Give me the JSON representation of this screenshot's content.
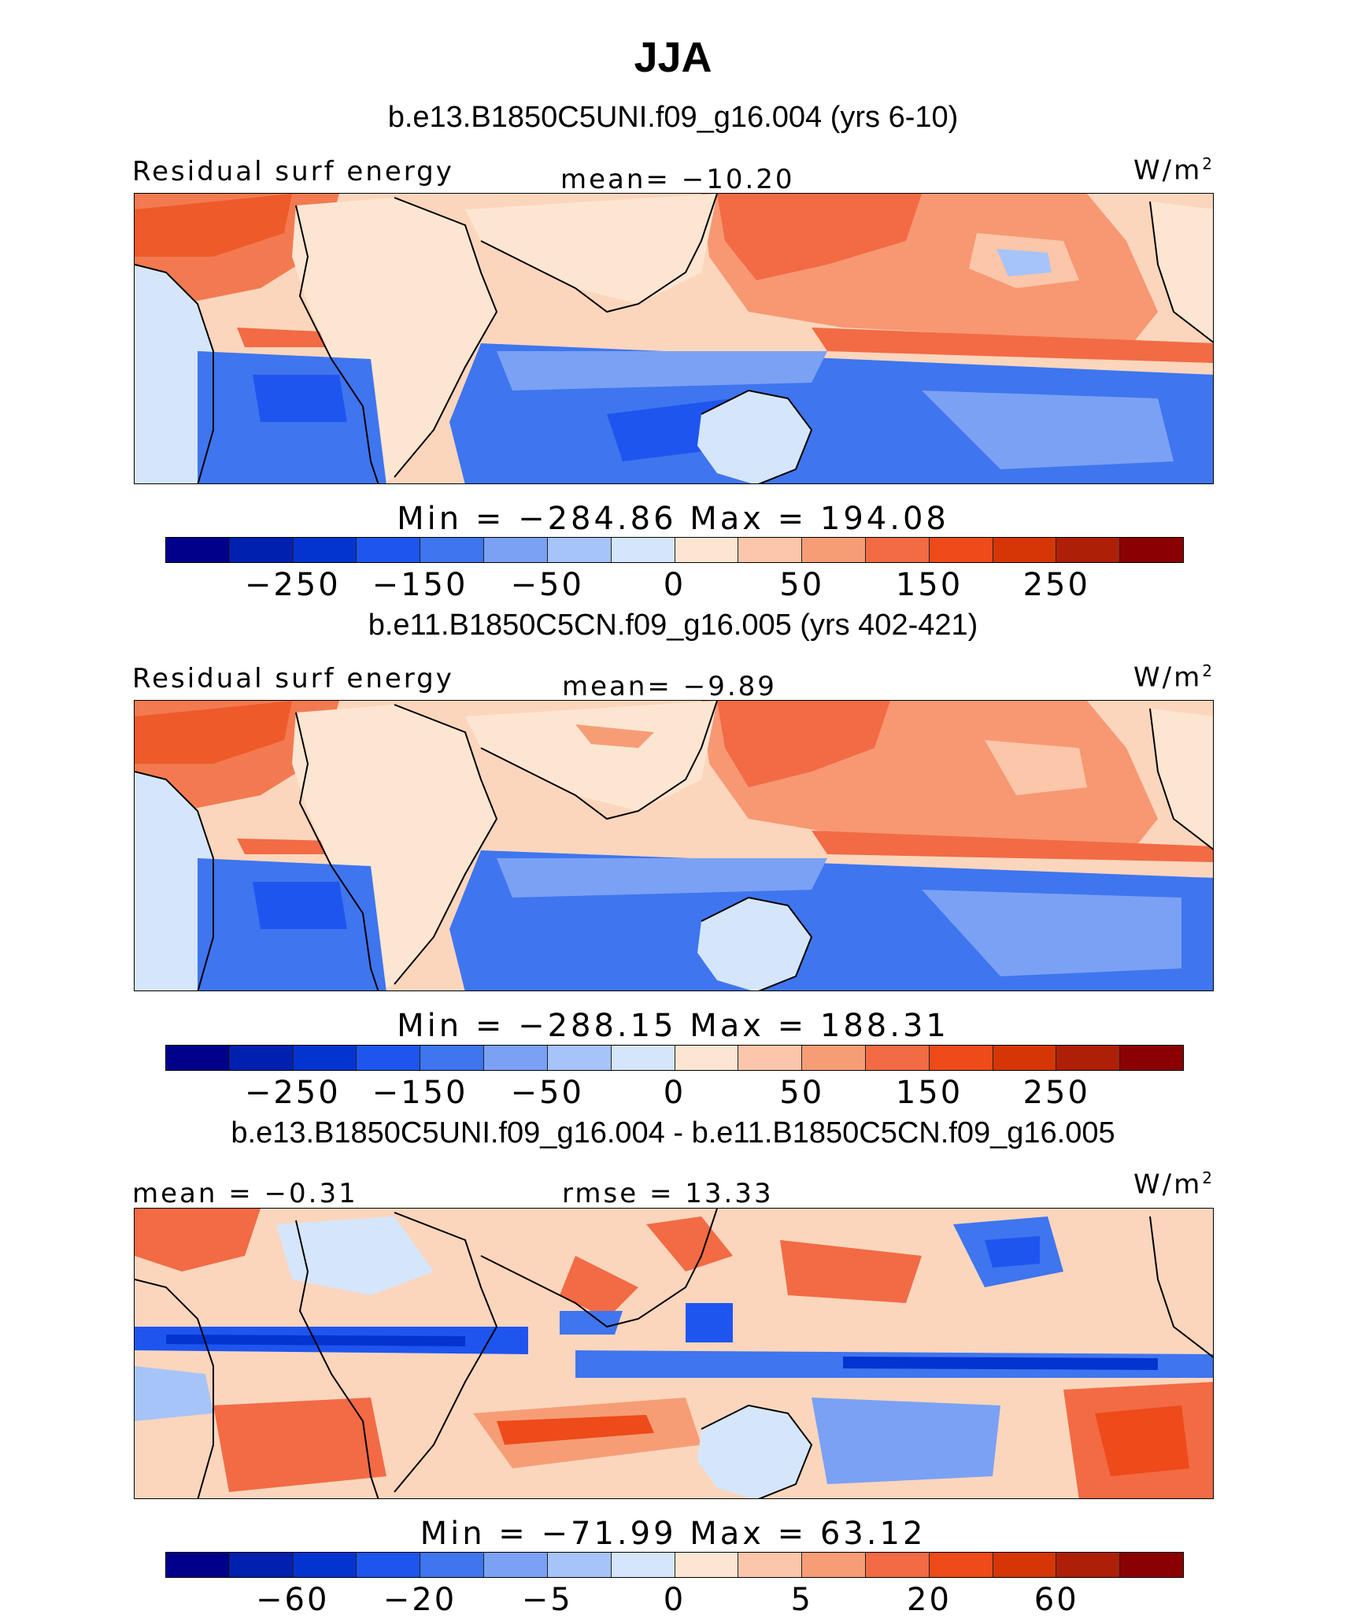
{
  "title": "JJA",
  "units_sup": "2",
  "palette": {
    "abs": [
      "#00008b",
      "#0020b0",
      "#0434d0",
      "#1f55ef",
      "#3f75ee",
      "#7ba1f4",
      "#a6c4f8",
      "#d5e6fb",
      "#fce6d2",
      "#fbc6a9",
      "#f79d76",
      "#f26b44",
      "#ee4a1a",
      "#d63606",
      "#ae1f08",
      "#8b0000"
    ],
    "diff": [
      "#00008b",
      "#0020b0",
      "#0434d0",
      "#1f55ef",
      "#3f75ee",
      "#7ba1f4",
      "#a6c4f8",
      "#d5e6fb",
      "#fce6d2",
      "#fbc6a9",
      "#f79d76",
      "#f26b44",
      "#ee4a1a",
      "#d63606",
      "#ae1f08",
      "#8b0000"
    ]
  },
  "panels": [
    {
      "case_title": "b.e13.B1850C5UNI.f09_g16.004 (yrs 6-10)",
      "left_label": "Residual surf energy",
      "center_label": "mean= −10.20",
      "units": "W/m",
      "minmax": "Min = −284.86 Max = 194.08",
      "colorbar_ticks": [
        "−250",
        "−150",
        "−50",
        "0",
        "50",
        "150",
        "250"
      ]
    },
    {
      "case_title": "b.e11.B1850C5CN.f09_g16.005 (yrs 402-421)",
      "left_label": "Residual surf energy",
      "center_label": "mean= −9.89",
      "units": "W/m",
      "minmax": "Min = −288.15 Max = 188.31",
      "colorbar_ticks": [
        "−250",
        "−150",
        "−50",
        "0",
        "50",
        "150",
        "250"
      ]
    },
    {
      "case_title": "b.e13.B1850C5UNI.f09_g16.004 - b.e11.B1850C5CN.f09_g16.005",
      "left_label": "mean = −0.31",
      "center_label": "rmse = 13.33",
      "units": "W/m",
      "minmax": "Min = −71.99 Max = 63.12",
      "colorbar_ticks": [
        "−60",
        "−20",
        "−5",
        "0",
        "5",
        "20",
        "60"
      ]
    }
  ]
}
